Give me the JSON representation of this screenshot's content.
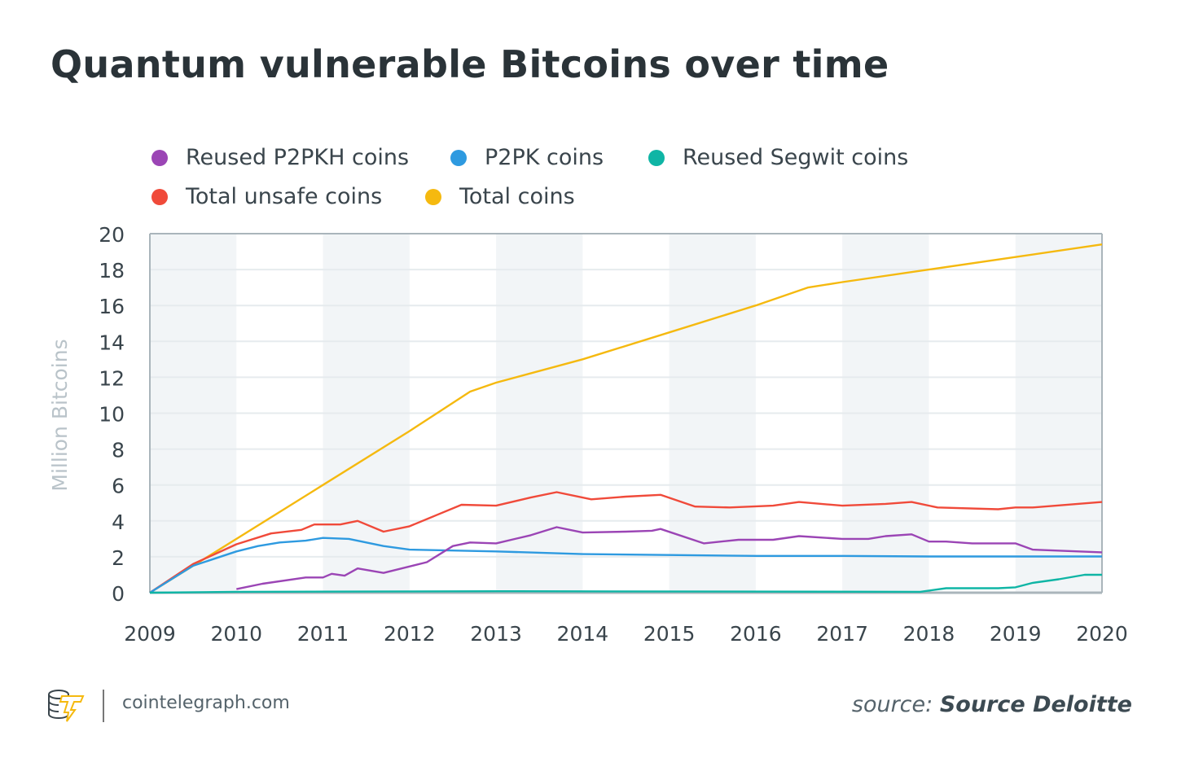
{
  "title": "Quantum vulnerable Bitcoins over time",
  "footer": {
    "site": "cointelegraph.com",
    "source_prefix": "source:",
    "source_name": "Source Deloitte",
    "logo_text": "cointelegraph"
  },
  "chart_data": {
    "type": "line",
    "title": "Quantum vulnerable Bitcoins over time",
    "xlabel": "",
    "ylabel": "Million Bitcoins",
    "xlim": [
      2009,
      2020
    ],
    "ylim": [
      0,
      20
    ],
    "x_ticks": [
      "2009",
      "2010",
      "2011",
      "2012",
      "2013",
      "2014",
      "2015",
      "2016",
      "2017",
      "2018",
      "2019",
      "2020"
    ],
    "y_ticks": [
      "0",
      "2",
      "4",
      "6",
      "8",
      "10",
      "12",
      "14",
      "16",
      "18",
      "20"
    ],
    "grid": true,
    "alternating_year_bands": true,
    "legend_placement": "top",
    "series": [
      {
        "name": "Reused P2PKH coins",
        "color": "#9b45b5",
        "x": [
          2010,
          2010.3,
          2010.8,
          2011,
          2011.1,
          2011.25,
          2011.4,
          2011.7,
          2012.2,
          2012.5,
          2012.7,
          2013,
          2013.4,
          2013.7,
          2014,
          2014.5,
          2014.8,
          2014.9,
          2015.4,
          2015.8,
          2016.2,
          2016.5,
          2017,
          2017.3,
          2017.5,
          2017.8,
          2018,
          2018.2,
          2018.5,
          2019,
          2019.2,
          2020
        ],
        "y": [
          0.2,
          0.5,
          0.85,
          0.85,
          1.05,
          0.95,
          1.35,
          1.1,
          1.7,
          2.6,
          2.8,
          2.75,
          3.2,
          3.65,
          3.35,
          3.4,
          3.45,
          3.55,
          2.75,
          2.95,
          2.95,
          3.15,
          3.0,
          3.0,
          3.15,
          3.25,
          2.85,
          2.85,
          2.75,
          2.75,
          2.4,
          2.25
        ]
      },
      {
        "name": "P2PK coins",
        "color": "#2e9ae0",
        "x": [
          2009,
          2009.5,
          2010,
          2010.25,
          2010.5,
          2010.8,
          2011,
          2011.3,
          2011.7,
          2012,
          2012.5,
          2013,
          2014,
          2015,
          2016,
          2017,
          2018,
          2019,
          2020
        ],
        "y": [
          0,
          1.5,
          2.3,
          2.6,
          2.8,
          2.9,
          3.05,
          3.0,
          2.6,
          2.4,
          2.35,
          2.3,
          2.15,
          2.1,
          2.05,
          2.05,
          2.02,
          2.02,
          2.02
        ]
      },
      {
        "name": "Reused Segwit coins",
        "color": "#0fb5a5",
        "x": [
          2009,
          2010,
          2013,
          2017.9,
          2018.2,
          2018.8,
          2019,
          2019.2,
          2019.5,
          2019.8,
          2020
        ],
        "y": [
          0,
          0.05,
          0.08,
          0.05,
          0.25,
          0.25,
          0.3,
          0.55,
          0.75,
          1.0,
          1.0
        ]
      },
      {
        "name": "Total unsafe coins",
        "color": "#f04a3a",
        "x": [
          2009,
          2009.5,
          2010,
          2010.4,
          2010.75,
          2010.9,
          2011.2,
          2011.4,
          2011.7,
          2012,
          2012.3,
          2012.6,
          2013,
          2013.4,
          2013.7,
          2014.1,
          2014.5,
          2014.9,
          2015.3,
          2015.7,
          2016.2,
          2016.5,
          2017,
          2017.5,
          2017.8,
          2018.1,
          2018.8,
          2019,
          2019.2,
          2020
        ],
        "y": [
          0,
          1.6,
          2.7,
          3.3,
          3.5,
          3.8,
          3.8,
          4.0,
          3.4,
          3.7,
          4.3,
          4.9,
          4.85,
          5.3,
          5.6,
          5.2,
          5.35,
          5.45,
          4.8,
          4.75,
          4.85,
          5.05,
          4.85,
          4.95,
          5.05,
          4.75,
          4.65,
          4.75,
          4.75,
          5.05
        ]
      },
      {
        "name": "Total coins",
        "color": "#f5b90f",
        "x": [
          2009,
          2010,
          2011,
          2012,
          2012.7,
          2013,
          2014,
          2015,
          2016,
          2016.6,
          2017,
          2018,
          2019,
          2020
        ],
        "y": [
          0,
          3.0,
          6.0,
          9.0,
          11.2,
          11.7,
          13.0,
          14.5,
          16.0,
          17.0,
          17.3,
          18.0,
          18.7,
          19.4
        ]
      }
    ]
  }
}
